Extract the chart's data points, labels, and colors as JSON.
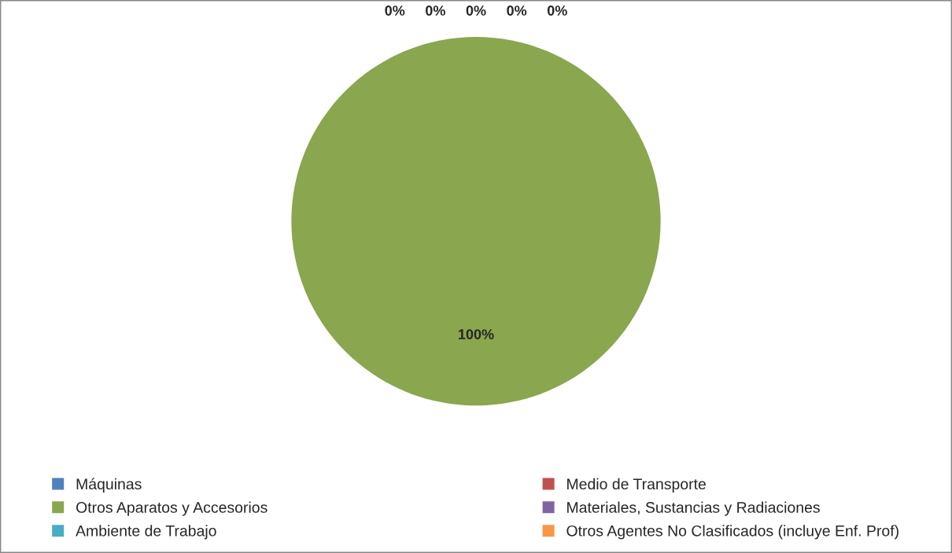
{
  "chart_data": {
    "type": "pie",
    "categories": [
      "Máquinas",
      "Medio de Transporte",
      "Otros Aparatos y Accesorios",
      "Materiales, Sustancias y Radiaciones",
      "Ambiente de Trabajo",
      "Otros Agentes No Clasificados (incluye Enf. Prof)"
    ],
    "values": [
      0,
      0,
      100,
      0,
      0,
      0
    ],
    "value_labels": [
      "0%",
      "0%",
      "100%",
      "0%",
      "0%",
      "0%"
    ],
    "colors": [
      "#4f81bd",
      "#c0504d",
      "#8aa64f",
      "#8064a2",
      "#4bacc6",
      "#f79646"
    ],
    "legend": "bottom"
  }
}
